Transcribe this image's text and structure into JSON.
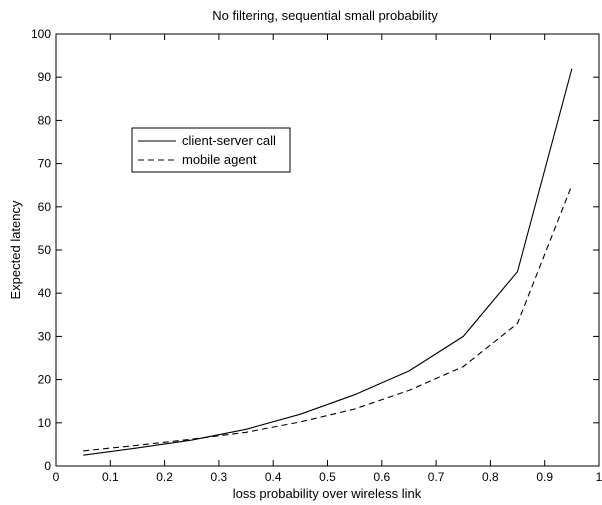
{
  "chart_data": {
    "type": "line",
    "title": "No filtering, sequential small probability",
    "xlabel": "loss probability over wireless link",
    "ylabel": "Expected latency",
    "xlim": [
      0,
      1
    ],
    "ylim": [
      0,
      100
    ],
    "x_ticks": [
      "0",
      "0.1",
      "0.2",
      "0.3",
      "0.4",
      "0.5",
      "0.6",
      "0.7",
      "0.8",
      "0.9",
      "1"
    ],
    "y_ticks": [
      "0",
      "10",
      "20",
      "30",
      "40",
      "50",
      "60",
      "70",
      "80",
      "90",
      "100"
    ],
    "grid": false,
    "legend_position": "upper-left",
    "x": [
      0.05,
      0.15,
      0.25,
      0.35,
      0.45,
      0.55,
      0.65,
      0.75,
      0.85,
      0.95
    ],
    "series": [
      {
        "name": "client-server call",
        "style": "solid",
        "color": "#000000",
        "values": [
          2.5,
          4.2,
          6.0,
          8.5,
          12.0,
          16.5,
          22.0,
          30.0,
          45.0,
          92.0
        ]
      },
      {
        "name": "mobile agent",
        "style": "dashed",
        "color": "#000000",
        "values": [
          3.5,
          4.8,
          6.2,
          7.8,
          10.2,
          13.2,
          17.5,
          23.0,
          33.0,
          65.0
        ]
      }
    ]
  }
}
